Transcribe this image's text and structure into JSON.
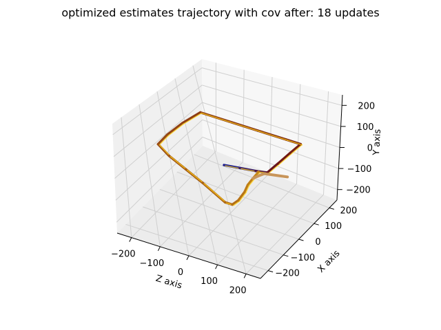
{
  "chart_data": {
    "type": "scatter",
    "projection": "3d",
    "title": "optimized estimates trajectory with cov after: 18 updates",
    "axes": {
      "x": {
        "label": "X axis",
        "lim": [
          -250,
          250
        ],
        "ticks": [
          -200,
          -100,
          0,
          100,
          200
        ],
        "tick_labels": [
          "−200",
          "−100",
          "0",
          "100",
          "200"
        ]
      },
      "y": {
        "label": "Y axis",
        "lim": [
          -250,
          250
        ],
        "ticks": [
          -200,
          -100,
          0,
          100,
          200
        ],
        "tick_labels": [
          "−200",
          "−100",
          "0",
          "100",
          "200"
        ]
      },
      "z": {
        "label": "Z axis",
        "lim": [
          -250,
          250
        ],
        "ticks": [
          -200,
          -100,
          0,
          100,
          200
        ],
        "tick_labels": [
          "−200",
          "−100",
          "0",
          "100",
          "200"
        ]
      }
    },
    "grid": true,
    "legend": "none",
    "colors": {
      "start": "#1f1f8f",
      "mid": "#6e1414",
      "end": "#ffd21a",
      "tail": "#c8955a"
    },
    "series": [
      {
        "type": "trajectory",
        "colormap": "time-gradient",
        "points": [
          {
            "x": -20,
            "z": 0,
            "y": 0
          },
          {
            "x": -10,
            "z": 50,
            "y": 0
          },
          {
            "x": 0,
            "z": 100,
            "y": 0
          },
          {
            "x": 10,
            "z": 135,
            "y": 0
          },
          {
            "x": 70,
            "z": 140,
            "y": 0
          },
          {
            "x": 140,
            "z": 145,
            "y": 0
          },
          {
            "x": 200,
            "z": 150,
            "y": 0
          },
          {
            "x": 200,
            "z": 100,
            "y": 0
          },
          {
            "x": 200,
            "z": 0,
            "y": 0
          },
          {
            "x": 200,
            "z": -100,
            "y": 0
          },
          {
            "x": 200,
            "z": -200,
            "y": 0
          },
          {
            "x": 120,
            "z": -220,
            "y": 0
          },
          {
            "x": 40,
            "z": -230,
            "y": 0
          },
          {
            "x": -20,
            "z": -230,
            "y": 0
          },
          {
            "x": -60,
            "z": -170,
            "y": 0
          },
          {
            "x": -100,
            "z": -90,
            "y": 0
          },
          {
            "x": -140,
            "z": -10,
            "y": 0
          },
          {
            "x": -200,
            "z": 100,
            "y": 0
          },
          {
            "x": -200,
            "z": 125,
            "y": 0
          },
          {
            "x": -170,
            "z": 130,
            "y": 0
          },
          {
            "x": -120,
            "z": 125,
            "y": 0
          },
          {
            "x": -80,
            "z": 115,
            "y": 0
          },
          {
            "x": -40,
            "z": 112,
            "y": 0
          },
          {
            "x": 0,
            "z": 110,
            "y": 0
          }
        ],
        "tail": [
          {
            "x": -40,
            "z": 112,
            "y": 0
          },
          {
            "x": -20,
            "z": 120,
            "y": 0
          },
          {
            "x": 0,
            "z": 130,
            "y": 0
          },
          {
            "x": 20,
            "z": 200,
            "y": 0
          }
        ]
      }
    ]
  }
}
